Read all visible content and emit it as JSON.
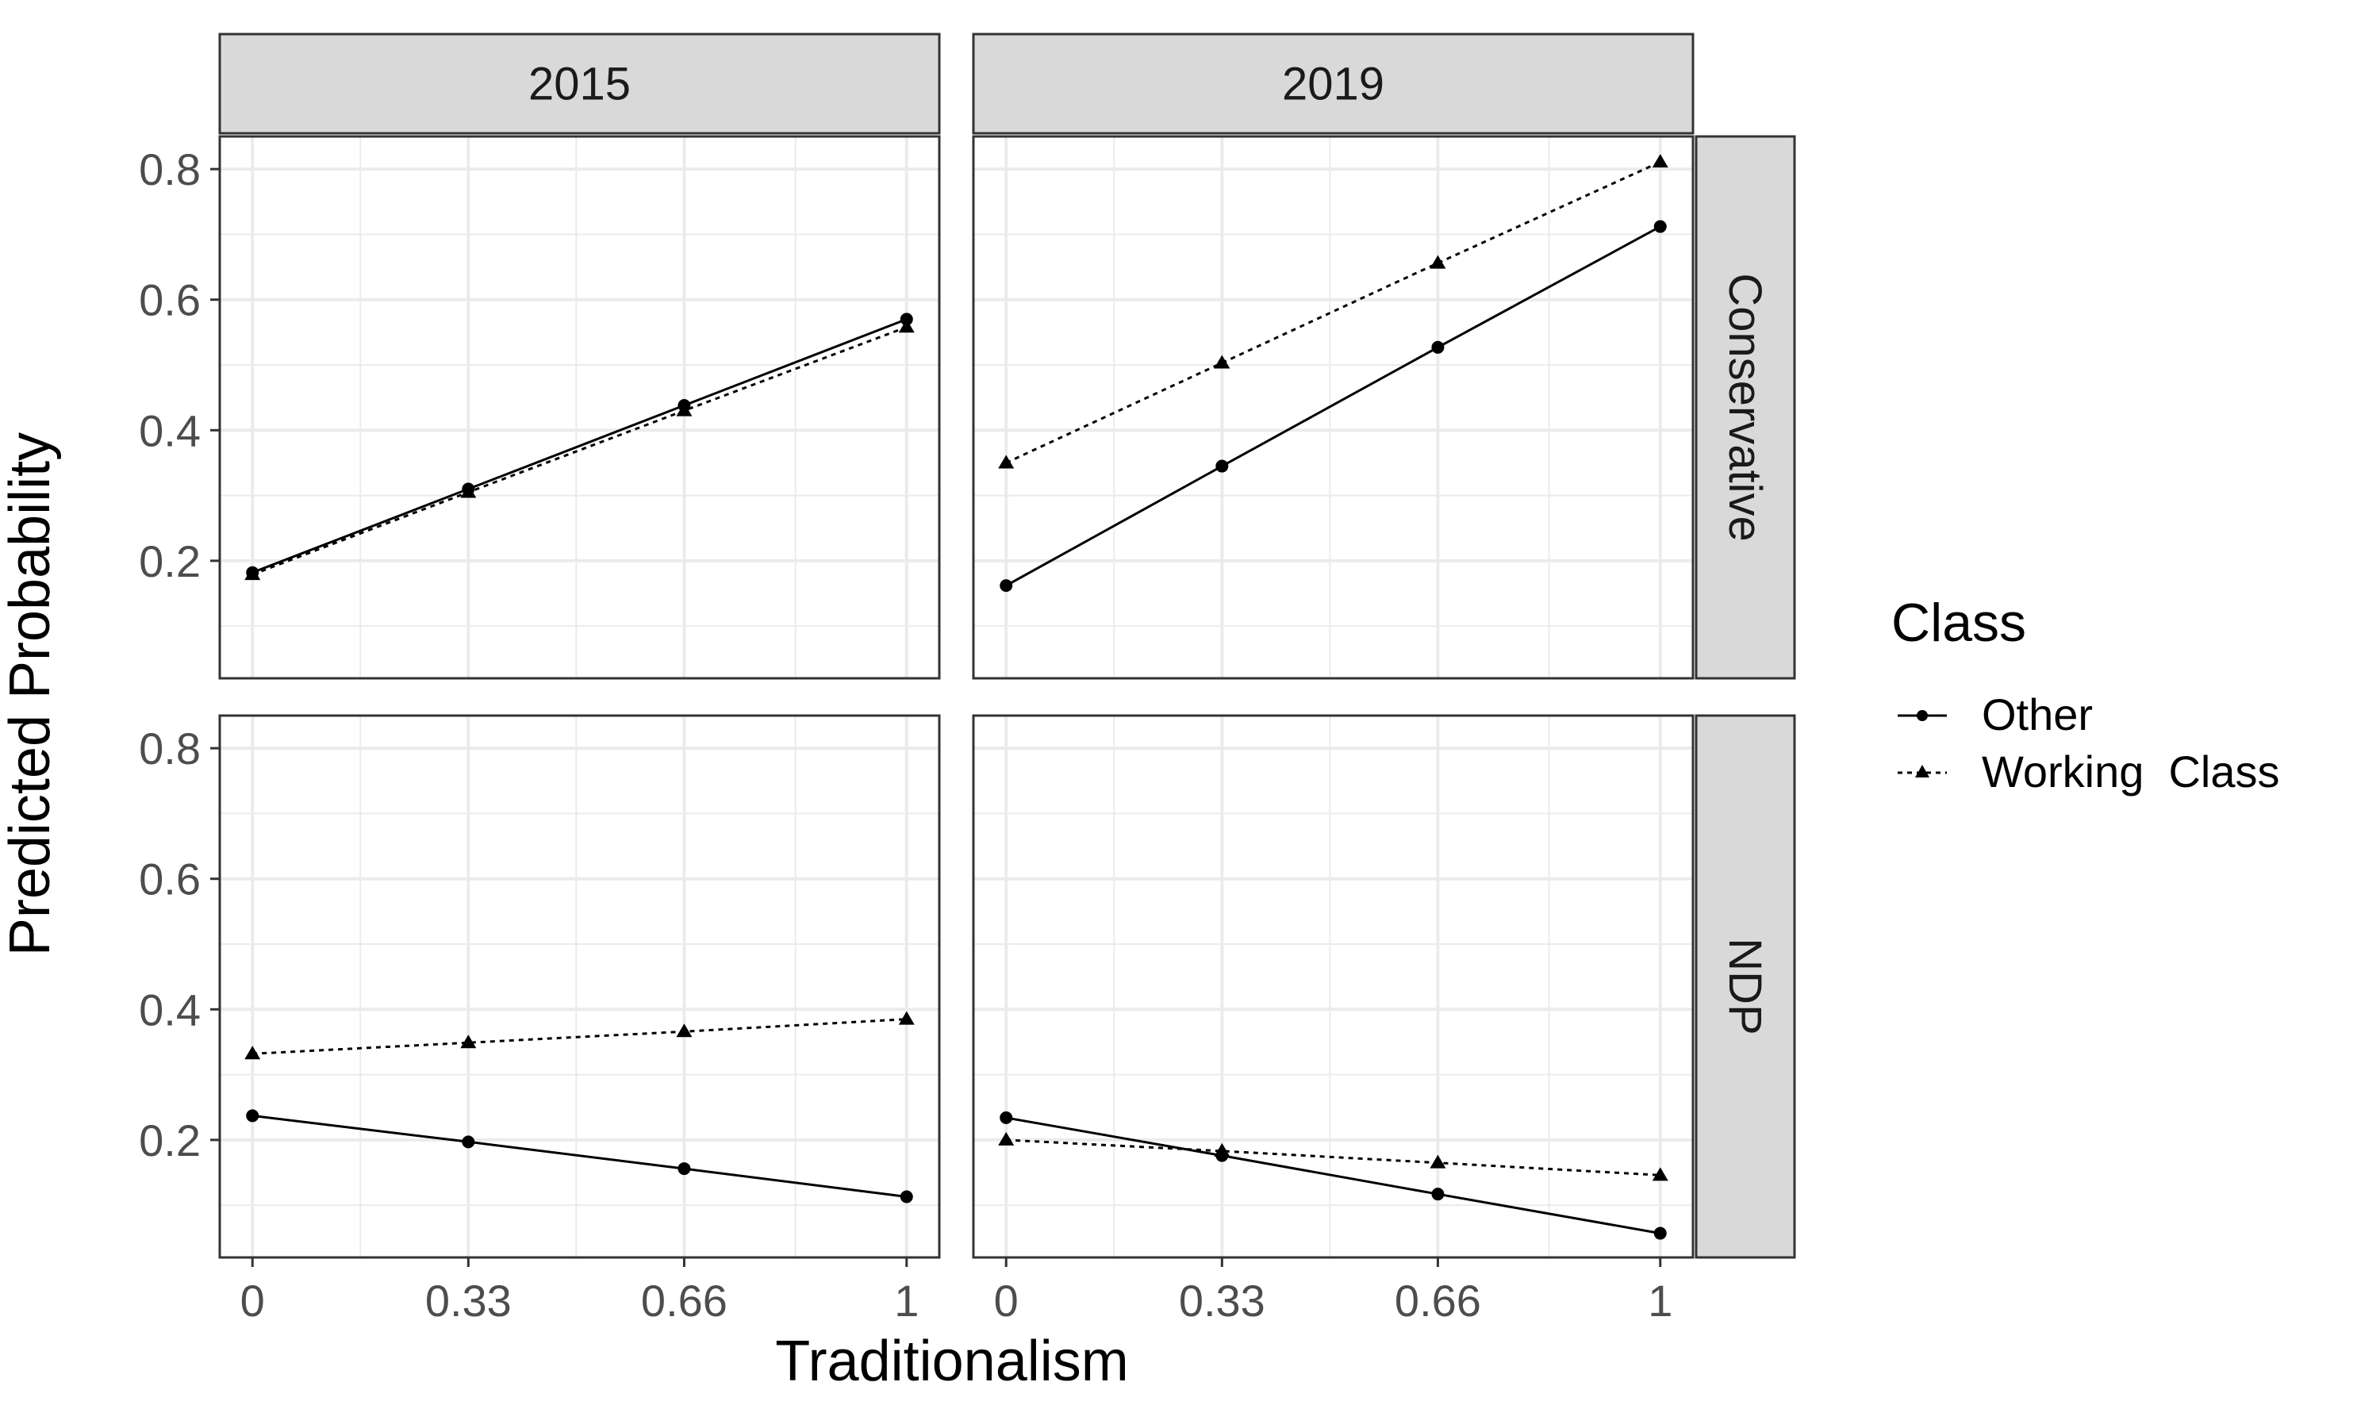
{
  "chart_data": {
    "type": "line",
    "x": [
      0,
      0.33,
      0.66,
      1
    ],
    "xticks": [
      "0",
      "0.33",
      "0.66",
      "1"
    ],
    "xlabel": "Traditionalism",
    "ylabel": "Predicted Probability",
    "yticks": [
      "0.2",
      "0.4",
      "0.6",
      "0.8"
    ],
    "ylim": [
      0.02,
      0.85
    ],
    "columns": [
      "2015",
      "2019"
    ],
    "rows": [
      "Conservative",
      "NDP"
    ],
    "grid": true,
    "legend": {
      "title": "Class",
      "placement": "right",
      "entries": [
        "Other",
        "Working  Class"
      ]
    },
    "panels": [
      {
        "column": "2015",
        "row": "Conservative",
        "series": [
          {
            "name": "Other",
            "marker": "circle",
            "line": "solid",
            "values": [
              0.182,
              0.31,
              0.438,
              0.57
            ]
          },
          {
            "name": "Working  Class",
            "marker": "triangle",
            "line": "dotted",
            "values": [
              0.179,
              0.305,
              0.43,
              0.558
            ]
          }
        ]
      },
      {
        "column": "2019",
        "row": "Conservative",
        "series": [
          {
            "name": "Other",
            "marker": "circle",
            "line": "solid",
            "values": [
              0.162,
              0.345,
              0.527,
              0.712
            ]
          },
          {
            "name": "Working  Class",
            "marker": "triangle",
            "line": "dotted",
            "values": [
              0.35,
              0.503,
              0.656,
              0.811
            ]
          }
        ]
      },
      {
        "column": "2015",
        "row": "NDP",
        "series": [
          {
            "name": "Other",
            "marker": "circle",
            "line": "solid",
            "values": [
              0.237,
              0.197,
              0.156,
              0.113
            ]
          },
          {
            "name": "Working  Class",
            "marker": "triangle",
            "line": "dotted",
            "values": [
              0.332,
              0.349,
              0.366,
              0.385
            ]
          }
        ]
      },
      {
        "column": "2019",
        "row": "NDP",
        "series": [
          {
            "name": "Other",
            "marker": "circle",
            "line": "solid",
            "values": [
              0.234,
              0.176,
              0.117,
              0.057
            ]
          },
          {
            "name": "Working  Class",
            "marker": "triangle",
            "line": "dotted",
            "values": [
              0.2,
              0.183,
              0.165,
              0.146
            ]
          }
        ]
      }
    ]
  }
}
